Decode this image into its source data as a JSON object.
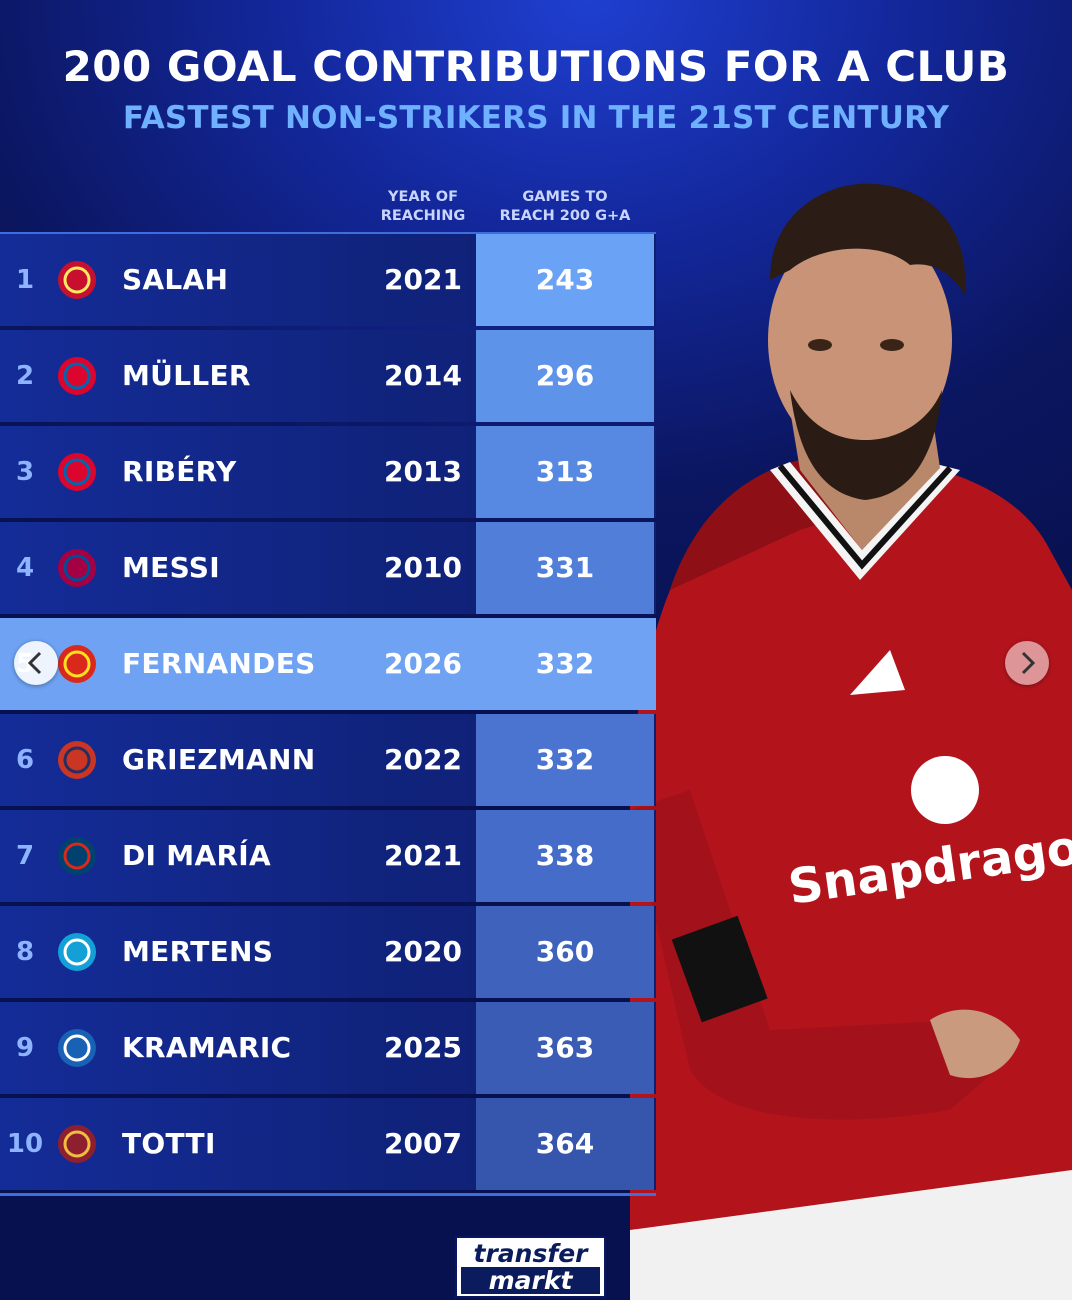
{
  "title": "200 GOAL CONTRIBUTIONS FOR A CLUB",
  "subtitle": "FASTEST NON-STRIKERS IN THE 21ST CENTURY",
  "columns": {
    "year": [
      "YEAR OF",
      "REACHING"
    ],
    "games": [
      "GAMES TO",
      "REACH 200 G+A"
    ]
  },
  "rows": [
    {
      "rank": "1",
      "name": "SALAH",
      "year": "2021",
      "games": "243",
      "club_icon": "liverpool-crest-icon",
      "color": "#6aa3f5"
    },
    {
      "rank": "2",
      "name": "MÜLLER",
      "year": "2014",
      "games": "296",
      "club_icon": "bayern-crest-icon",
      "color": "#5e93ea"
    },
    {
      "rank": "3",
      "name": "RIBÉRY",
      "year": "2013",
      "games": "313",
      "club_icon": "bayern-crest-icon",
      "color": "#5889e2"
    },
    {
      "rank": "4",
      "name": "MESSI",
      "year": "2010",
      "games": "331",
      "club_icon": "barcelona-crest-icon",
      "color": "#507ed8"
    },
    {
      "rank": "5",
      "name": "FERNANDES",
      "year": "2026",
      "games": "332",
      "club_icon": "manutd-crest-icon",
      "color": "#6fa2f2",
      "highlight": true
    },
    {
      "rank": "6",
      "name": "GRIEZMANN",
      "year": "2022",
      "games": "332",
      "club_icon": "atletico-crest-icon",
      "color": "#4a74d0"
    },
    {
      "rank": "7",
      "name": "DI MARÍA",
      "year": "2021",
      "games": "338",
      "club_icon": "psg-crest-icon",
      "color": "#456cc8"
    },
    {
      "rank": "8",
      "name": "MERTENS",
      "year": "2020",
      "games": "360",
      "club_icon": "napoli-crest-icon",
      "color": "#3f63bd"
    },
    {
      "rank": "9",
      "name": "KRAMARIC",
      "year": "2025",
      "games": "363",
      "club_icon": "hoffenheim-crest-icon",
      "color": "#3b5cb5"
    },
    {
      "rank": "10",
      "name": "TOTTI",
      "year": "2007",
      "games": "364",
      "club_icon": "roma-crest-icon",
      "color": "#3656ae"
    }
  ],
  "logo": [
    "transfer",
    "markt"
  ],
  "colors": {
    "accent": "#6fb0ff",
    "highlight": "#6fa2f2",
    "background": "#0b1660"
  }
}
